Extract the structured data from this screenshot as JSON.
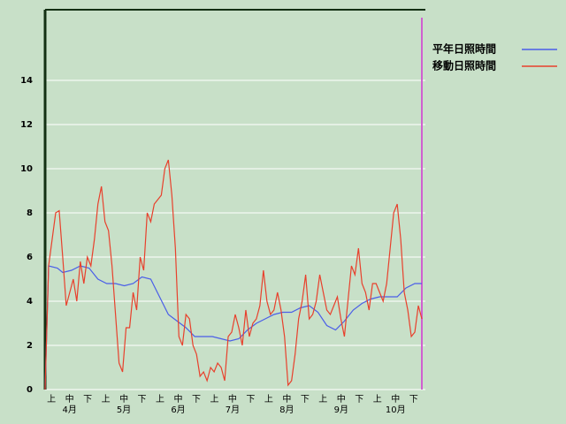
{
  "chart_data": {
    "type": "line",
    "categories": [
      "上",
      "中",
      "下",
      "上",
      "中",
      "下",
      "上",
      "中",
      "下",
      "上",
      "中",
      "下",
      "上",
      "中",
      "下",
      "上",
      "中",
      "下",
      "上",
      "中",
      "下"
    ],
    "month_labels": [
      "4月",
      "5月",
      "6月",
      "7月",
      "8月",
      "9月",
      "10月"
    ],
    "xlim": [
      0,
      216
    ],
    "ylim": [
      0,
      17.2
    ],
    "yticks": [
      0,
      2,
      4,
      6,
      8,
      10,
      12,
      14
    ],
    "grid": true,
    "legend": "top-right",
    "series": [
      {
        "name": "平年日照時間",
        "color": "#4a5ee8",
        "x": [
          0,
          2,
          7,
          10,
          15,
          20,
          25,
          30,
          35,
          40,
          45,
          50,
          55,
          60,
          65,
          70,
          75,
          80,
          85,
          90,
          95,
          100,
          105,
          110,
          115,
          120,
          125,
          130,
          135,
          140,
          145,
          150,
          155,
          160,
          165,
          170,
          175,
          180,
          185,
          190,
          195,
          200,
          205,
          210,
          214
        ],
        "values": [
          0,
          5.6,
          5.5,
          5.3,
          5.4,
          5.6,
          5.5,
          5.0,
          4.8,
          4.8,
          4.7,
          4.8,
          5.1,
          5.0,
          4.2,
          3.4,
          3.1,
          2.8,
          2.4,
          2.4,
          2.4,
          2.3,
          2.2,
          2.3,
          2.7,
          3.0,
          3.2,
          3.4,
          3.5,
          3.5,
          3.7,
          3.8,
          3.5,
          2.9,
          2.7,
          3.1,
          3.6,
          3.9,
          4.1,
          4.2,
          4.2,
          4.2,
          4.6,
          4.8,
          4.8
        ]
      },
      {
        "name": "移動日照時間",
        "color": "#e8402c",
        "x": [
          0,
          2,
          4,
          6,
          8,
          10,
          12,
          14,
          16,
          18,
          20,
          22,
          24,
          26,
          28,
          30,
          32,
          34,
          36,
          38,
          40,
          42,
          44,
          46,
          48,
          50,
          52,
          54,
          56,
          58,
          60,
          62,
          64,
          66,
          68,
          70,
          72,
          74,
          76,
          78,
          80,
          82,
          84,
          86,
          88,
          90,
          92,
          94,
          96,
          98,
          100,
          102,
          104,
          106,
          108,
          110,
          112,
          114,
          116,
          118,
          120,
          122,
          124,
          126,
          128,
          130,
          132,
          134,
          136,
          138,
          140,
          142,
          144,
          146,
          148,
          150,
          152,
          154,
          156,
          158,
          160,
          162,
          164,
          166,
          168,
          170,
          172,
          174,
          176,
          178,
          180,
          182,
          184,
          186,
          188,
          190,
          192,
          194,
          196,
          198,
          200,
          202,
          204,
          206,
          208,
          210,
          212,
          214
        ],
        "values": [
          0.0,
          5.6,
          6.8,
          8.0,
          8.1,
          6.0,
          3.8,
          4.4,
          5.0,
          4.0,
          5.8,
          4.8,
          6.0,
          5.6,
          6.8,
          8.4,
          9.2,
          7.6,
          7.2,
          5.6,
          3.4,
          1.2,
          0.8,
          2.8,
          2.8,
          4.4,
          3.6,
          6.0,
          5.4,
          8.0,
          7.6,
          8.4,
          8.6,
          8.8,
          10.0,
          10.4,
          8.8,
          6.4,
          2.4,
          2.0,
          3.4,
          3.2,
          2.0,
          1.6,
          0.6,
          0.8,
          0.4,
          1.0,
          0.8,
          1.2,
          1.0,
          0.4,
          2.4,
          2.6,
          3.4,
          2.8,
          2.0,
          3.6,
          2.4,
          3.0,
          3.2,
          3.8,
          5.4,
          4.0,
          3.4,
          3.6,
          4.4,
          3.6,
          2.4,
          0.2,
          0.4,
          1.6,
          3.2,
          4.0,
          5.2,
          3.2,
          3.4,
          4.0,
          5.2,
          4.4,
          3.6,
          3.4,
          3.8,
          4.2,
          3.2,
          2.4,
          4.0,
          5.6,
          5.2,
          6.4,
          4.8,
          4.4,
          3.6,
          4.8,
          4.8,
          4.4,
          4.0,
          4.8,
          6.4,
          8.0,
          8.4,
          6.8,
          4.4,
          3.6,
          2.4,
          2.6,
          3.8,
          3.2
        ]
      }
    ]
  }
}
